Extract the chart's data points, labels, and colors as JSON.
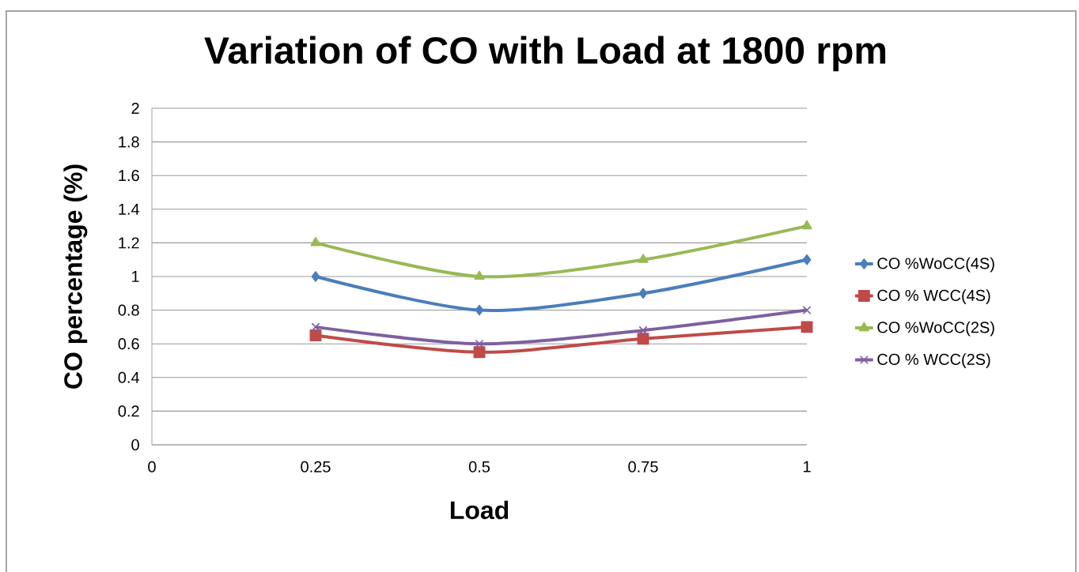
{
  "chart_data": {
    "type": "line",
    "title": "Variation of CO with Load at 1800 rpm",
    "xlabel": "Load",
    "ylabel": "CO percentage (%)",
    "x": [
      0.25,
      0.5,
      0.75,
      1
    ],
    "series": [
      {
        "name": "CO %WoCC(4S)",
        "color": "#4a7ebb",
        "marker": "diamond",
        "values": [
          1.0,
          0.8,
          0.9,
          1.1
        ]
      },
      {
        "name": "CO % WCC(4S)",
        "color": "#be4b48",
        "marker": "square",
        "values": [
          0.65,
          0.55,
          0.63,
          0.7
        ]
      },
      {
        "name": "CO %WoCC(2S)",
        "color": "#98b954",
        "marker": "triangle",
        "values": [
          1.2,
          1.0,
          1.1,
          1.3
        ]
      },
      {
        "name": "CO % WCC(2S)",
        "color": "#7d60a0",
        "marker": "cross",
        "values": [
          0.7,
          0.6,
          0.68,
          0.8
        ]
      }
    ],
    "xlim": [
      0,
      1
    ],
    "xticks": [
      0,
      0.25,
      0.5,
      0.75,
      1
    ],
    "ylim": [
      0,
      2
    ],
    "yticks": [
      0,
      0.2,
      0.4,
      0.6,
      0.8,
      1,
      1.2,
      1.4,
      1.6,
      1.8,
      2
    ],
    "grid": "y",
    "legend": "right",
    "line_style": "solid"
  }
}
